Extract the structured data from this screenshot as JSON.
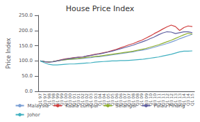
{
  "chart_data": {
    "type": "line",
    "title": "House Price Index",
    "ylabel": "Price Index",
    "categories": [
      "Q1 97",
      "Q3 97",
      "Q1 98",
      "Q3 98",
      "Q1 99",
      "Q3 99",
      "Q1 00",
      "Q3 00",
      "Q1 01",
      "Q3 01",
      "Q1 02",
      "Q3 02",
      "Q1 03",
      "Q3 03",
      "Q1 04",
      "Q3 04",
      "Q1 05",
      "Q3 05",
      "Q1 06",
      "Q3 06",
      "Q1 07",
      "Q3 07",
      "Q1 08",
      "Q3 08",
      "Q1 09",
      "Q3 09",
      "Q1 10",
      "Q3 10",
      "Q1 11",
      "Q3 11",
      "Q1 12",
      "Q3 12",
      "Q1 13",
      "Q3 13",
      "Q1 14",
      "Q3 14",
      "Q1 15"
    ],
    "series": [
      {
        "name": "Malaysia",
        "color": "#7b9fd4",
        "values": [
          100,
          98,
          97,
          98,
          100,
          102,
          104,
          105,
          106,
          107,
          108,
          110,
          111,
          113,
          114,
          116,
          118,
          120,
          122,
          124,
          126,
          128,
          130,
          133,
          135,
          138,
          141,
          145,
          149,
          153,
          157,
          162,
          167,
          173,
          178,
          183,
          188
        ]
      },
      {
        "name": "Kuala Lumpur",
        "color": "#d04040",
        "values": [
          100,
          97,
          96,
          98,
          101,
          104,
          107,
          109,
          111,
          112,
          113,
          116,
          119,
          122,
          124,
          127,
          130,
          134,
          138,
          143,
          148,
          153,
          157,
          163,
          168,
          175,
          182,
          190,
          197,
          205,
          212,
          218,
          213,
          200,
          210,
          215,
          213
        ]
      },
      {
        "name": "Selangor",
        "color": "#90b030",
        "values": [
          100,
          98,
          97,
          98,
          100,
          102,
          104,
          106,
          107,
          108,
          110,
          112,
          113,
          115,
          116,
          118,
          120,
          122,
          124,
          126,
          128,
          130,
          132,
          135,
          138,
          141,
          145,
          149,
          153,
          158,
          163,
          168,
          174,
          180,
          186,
          191,
          188
        ]
      },
      {
        "name": "Pulau Pinang",
        "color": "#6060a0",
        "values": [
          100,
          98,
          96,
          97,
          100,
          103,
          106,
          108,
          110,
          112,
          113,
          116,
          118,
          121,
          123,
          126,
          129,
          132,
          136,
          140,
          144,
          148,
          152,
          157,
          162,
          167,
          173,
          179,
          186,
          192,
          196,
          195,
          190,
          193,
          196,
          196,
          193
        ]
      },
      {
        "name": "Johor",
        "color": "#40b0c0",
        "values": [
          100,
          94,
          89,
          87,
          87,
          88,
          89,
          90,
          90,
          91,
          92,
          93,
          94,
          96,
          97,
          98,
          99,
          100,
          100,
          101,
          101,
          102,
          103,
          104,
          105,
          107,
          109,
          111,
          113,
          116,
          119,
          122,
          126,
          130,
          132,
          132,
          133
        ]
      }
    ],
    "ylim": [
      0,
      250
    ],
    "yticks": [
      {
        "value": 0,
        "label": "0.0"
      },
      {
        "value": 50,
        "label": "50.0"
      },
      {
        "value": 100,
        "label": "100.0"
      },
      {
        "value": 150,
        "label": "150.0"
      },
      {
        "value": 200,
        "label": "200.0"
      },
      {
        "value": 250,
        "label": "250.0"
      }
    ],
    "grid": false,
    "legend": "bottom"
  }
}
